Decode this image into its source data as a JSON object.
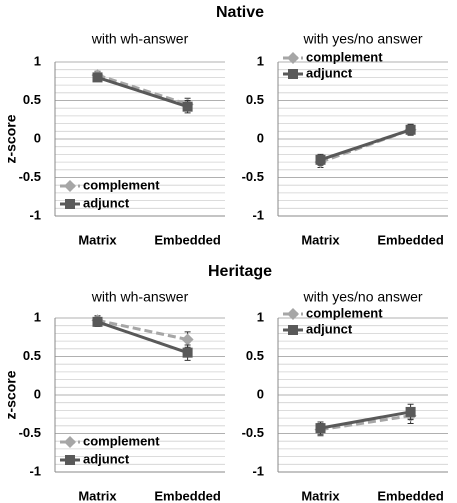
{
  "groups": [
    {
      "title": "Native"
    },
    {
      "title": "Heritage"
    }
  ],
  "chart_data": [
    {
      "type": "line",
      "title": "with wh-answer",
      "y_label": "z-score",
      "categories": [
        "Matrix",
        "Embedded"
      ],
      "ylim": [
        -1,
        1
      ],
      "yticks": [
        1,
        0.5,
        0,
        -0.5,
        -1
      ],
      "grid": true,
      "legend": "lower left",
      "series": [
        {
          "name": "complement",
          "color": "#a6a6a6",
          "line_style": "dashed",
          "marker": "diamond",
          "values": [
            0.83,
            0.45
          ],
          "errors": [
            0.05,
            0.08
          ]
        },
        {
          "name": "adjunct",
          "color": "#595959",
          "line_style": "solid",
          "marker": "square",
          "values": [
            0.8,
            0.42
          ],
          "errors": [
            0.05,
            0.08
          ]
        }
      ]
    },
    {
      "type": "line",
      "title": "with yes/no answer",
      "categories": [
        "Matrix",
        "Embedded"
      ],
      "ylim": [
        -1,
        1
      ],
      "yticks": [
        1,
        0.5,
        0,
        -0.5,
        -1
      ],
      "grid": true,
      "legend": "upper left",
      "series": [
        {
          "name": "complement",
          "color": "#a6a6a6",
          "line_style": "dashed",
          "marker": "diamond",
          "values": [
            -0.3,
            0.12
          ],
          "errors": [
            0.07,
            0.07
          ]
        },
        {
          "name": "adjunct",
          "color": "#595959",
          "line_style": "solid",
          "marker": "square",
          "values": [
            -0.27,
            0.12
          ],
          "errors": [
            0.07,
            0.07
          ]
        }
      ]
    },
    {
      "type": "line",
      "title": "with wh-answer",
      "y_label": "z-score",
      "categories": [
        "Matrix",
        "Embedded"
      ],
      "ylim": [
        -1,
        1
      ],
      "yticks": [
        1,
        0.5,
        0,
        -0.5,
        -1
      ],
      "grid": true,
      "legend": "lower left",
      "series": [
        {
          "name": "complement",
          "color": "#a6a6a6",
          "line_style": "dashed",
          "marker": "diamond",
          "values": [
            0.97,
            0.72
          ],
          "errors": [
            0.06,
            0.1
          ]
        },
        {
          "name": "adjunct",
          "color": "#595959",
          "line_style": "solid",
          "marker": "square",
          "values": [
            0.95,
            0.55
          ],
          "errors": [
            0.06,
            0.1
          ]
        }
      ]
    },
    {
      "type": "line",
      "title": "with yes/no answer",
      "categories": [
        "Matrix",
        "Embedded"
      ],
      "ylim": [
        -1,
        1
      ],
      "yticks": [
        1,
        0.5,
        0,
        -0.5,
        -1
      ],
      "grid": true,
      "legend": "upper left",
      "series": [
        {
          "name": "complement",
          "color": "#a6a6a6",
          "line_style": "dashed",
          "marker": "diamond",
          "values": [
            -0.45,
            -0.27
          ],
          "errors": [
            0.08,
            0.1
          ]
        },
        {
          "name": "adjunct",
          "color": "#595959",
          "line_style": "solid",
          "marker": "square",
          "values": [
            -0.43,
            -0.22
          ],
          "errors": [
            0.08,
            0.1
          ]
        }
      ]
    }
  ]
}
